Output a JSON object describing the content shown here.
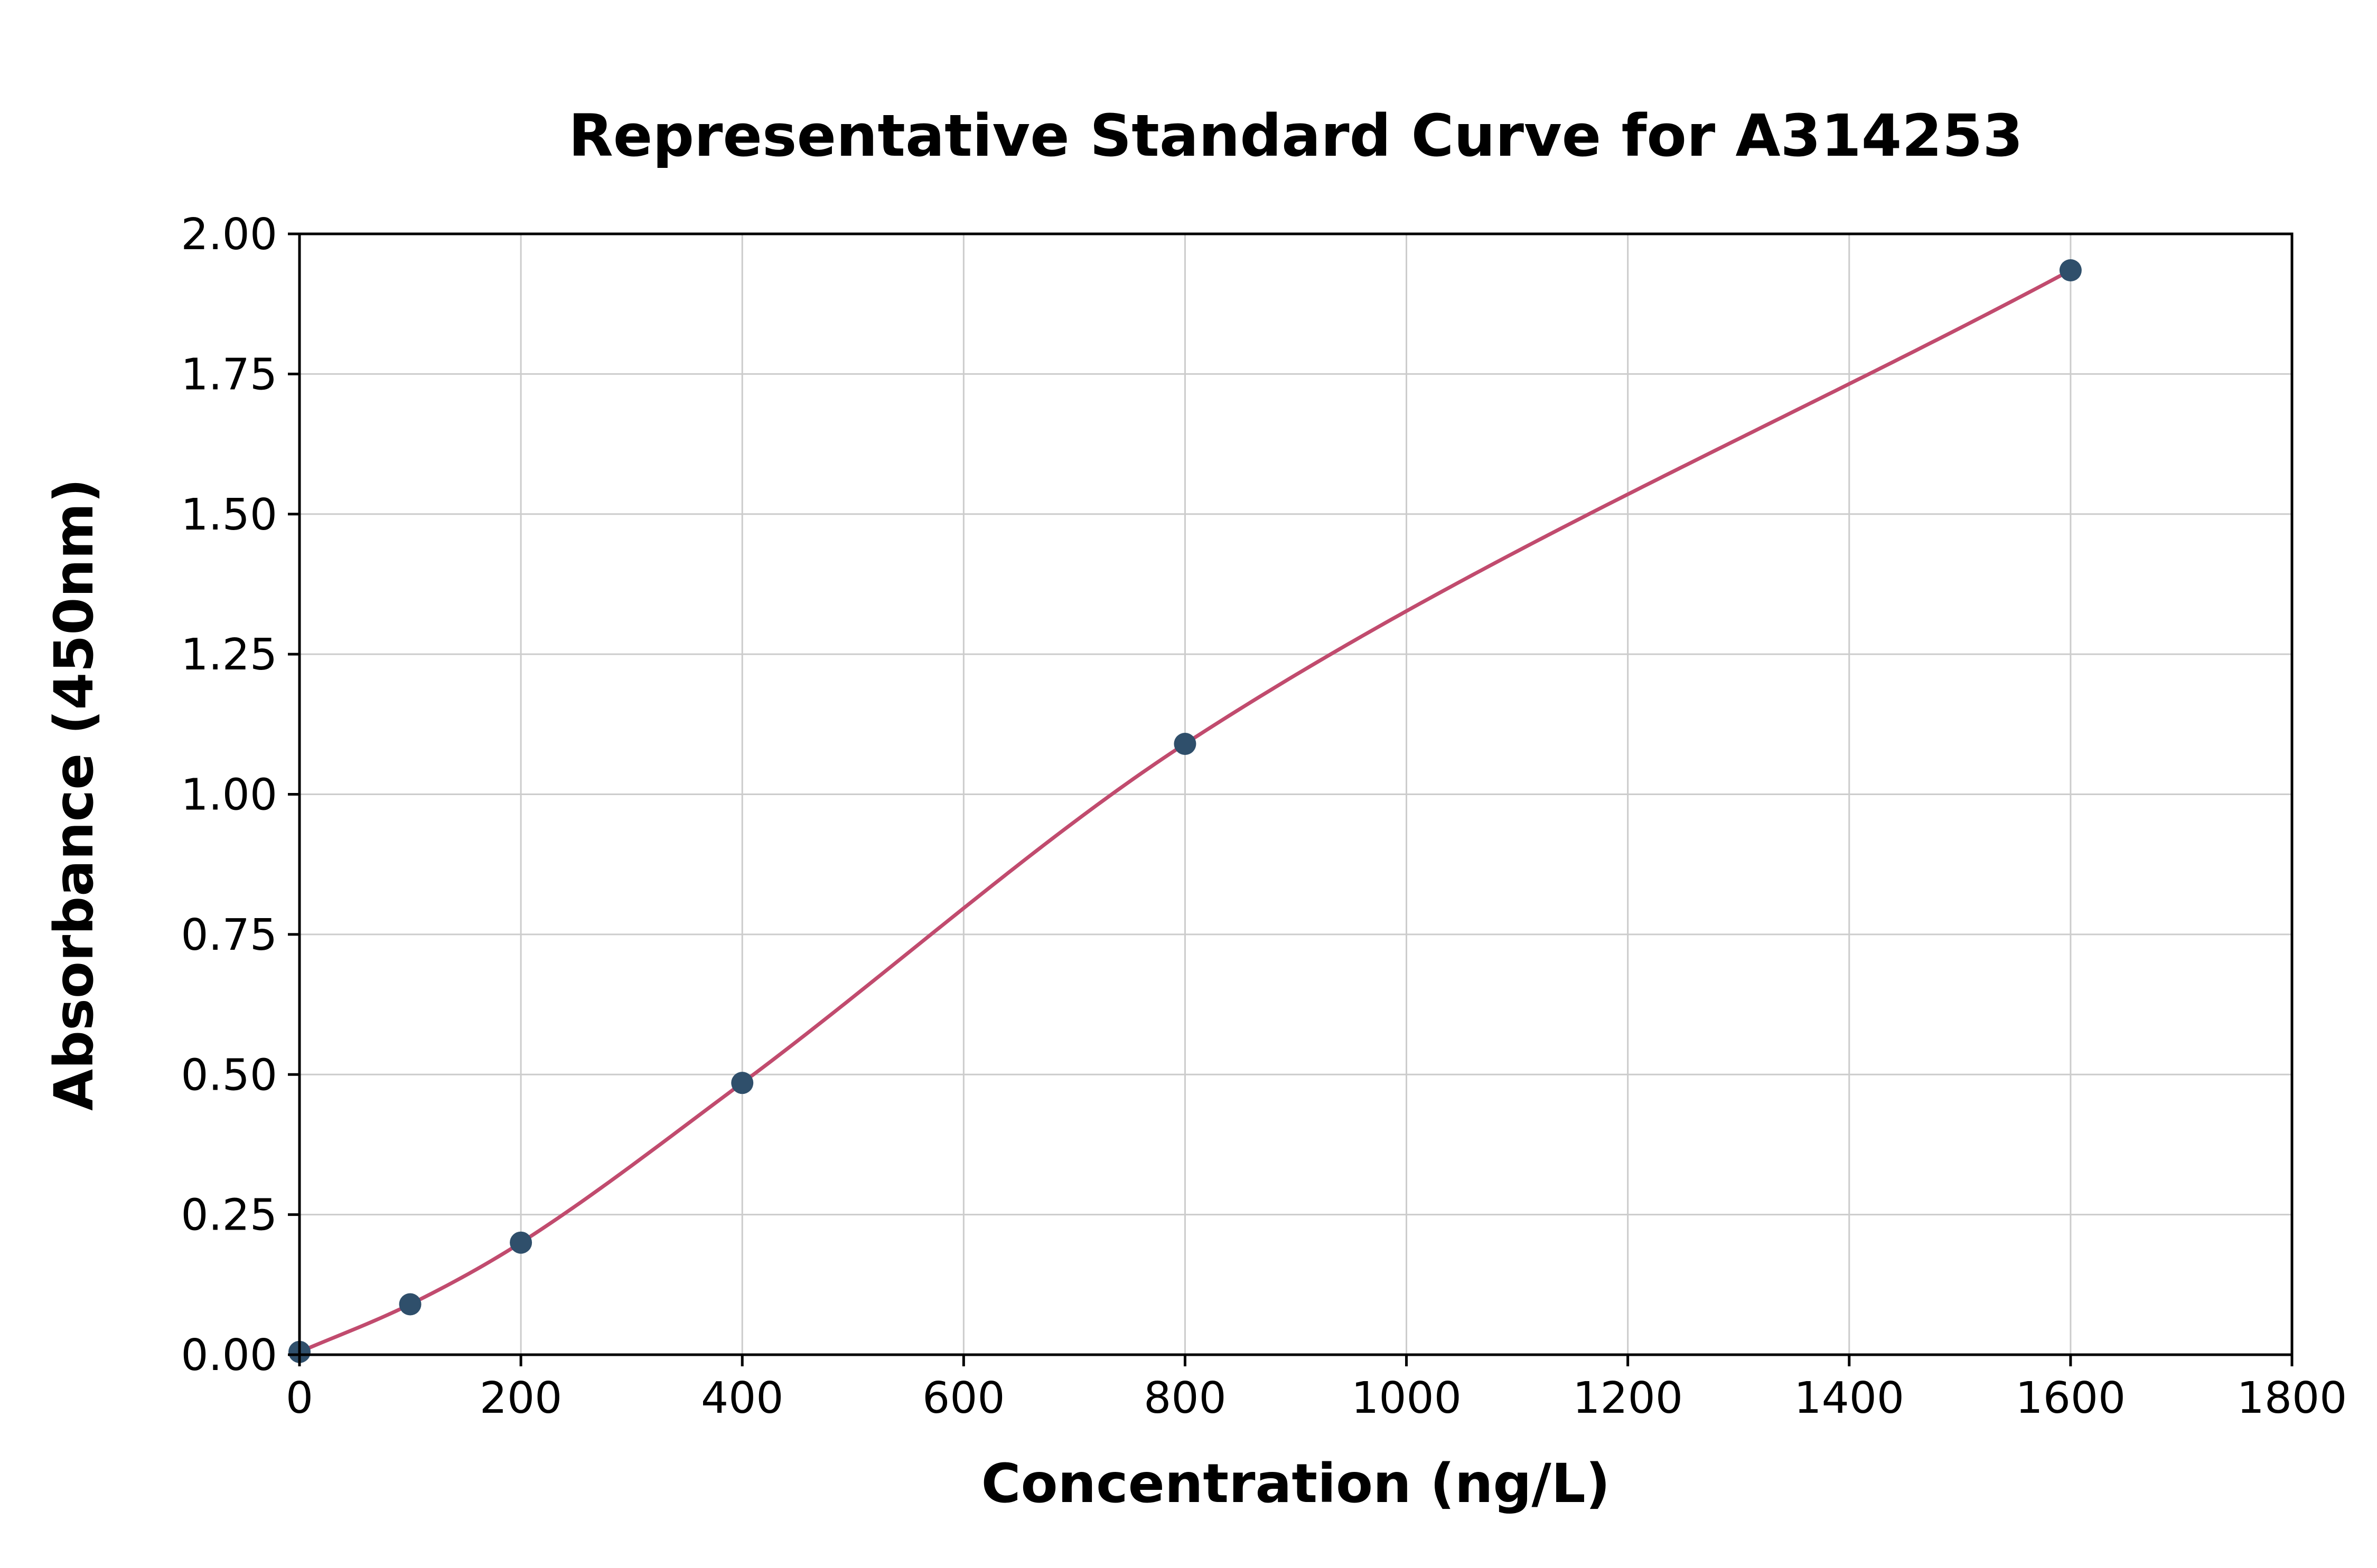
{
  "chart_data": {
    "type": "line",
    "title": "Representative Standard Curve for A314253",
    "xlabel": "Concentration (ng/L)",
    "ylabel": "Absorbance (450nm)",
    "x": [
      0,
      100,
      200,
      400,
      800,
      1600
    ],
    "y": [
      0.005,
      0.09,
      0.2,
      0.485,
      1.09,
      1.935
    ],
    "xlim": [
      0,
      1800
    ],
    "ylim": [
      0.0,
      2.0
    ],
    "xticks": [
      0,
      200,
      400,
      600,
      800,
      1000,
      1200,
      1400,
      1600,
      1800
    ],
    "xtick_labels": [
      "0",
      "200",
      "400",
      "600",
      "800",
      "1000",
      "1200",
      "1400",
      "1600",
      "1800"
    ],
    "yticks": [
      0.0,
      0.25,
      0.5,
      0.75,
      1.0,
      1.25,
      1.5,
      1.75,
      2.0
    ],
    "ytick_labels": [
      "0.00",
      "0.25",
      "0.50",
      "0.75",
      "1.00",
      "1.25",
      "1.50",
      "1.75",
      "2.00"
    ],
    "grid": true,
    "legend": "none",
    "line_color": "#c14b6e",
    "marker_color": "#2f4f6b",
    "grid_color": "#cccccc",
    "spine_color": "#000000",
    "background_color": "#ffffff"
  }
}
